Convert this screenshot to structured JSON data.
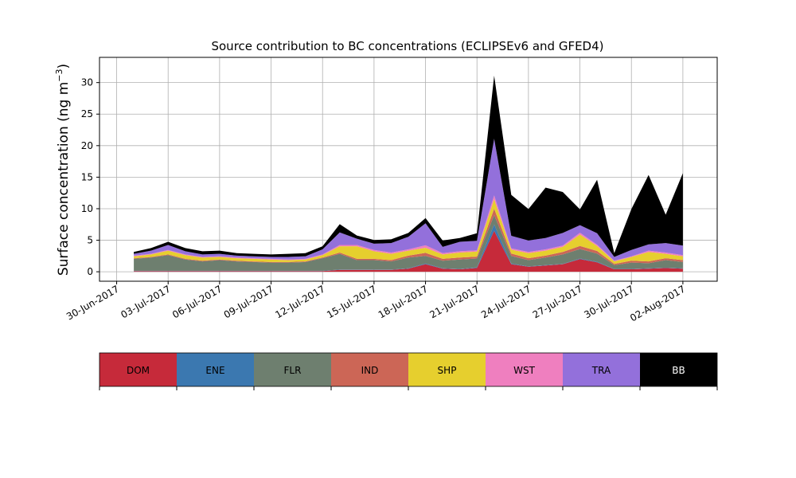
{
  "chart_data": {
    "type": "area",
    "stacked": true,
    "title": "Source contribution to BC concentrations (ECLIPSEv6 and GFED4)",
    "ylabel_text": "Surface concentration (ng m",
    "ylabel_sup": "−3",
    "ylabel_close": ")",
    "xlabel": "",
    "ylim": [
      -1.5,
      34
    ],
    "xlim": [
      "2017-06-29",
      "2017-08-04"
    ],
    "grid": true,
    "x": [
      "2017-07-01",
      "2017-07-02",
      "2017-07-03",
      "2017-07-04",
      "2017-07-05",
      "2017-07-06",
      "2017-07-07",
      "2017-07-08",
      "2017-07-09",
      "2017-07-10",
      "2017-07-11",
      "2017-07-12",
      "2017-07-13",
      "2017-07-14",
      "2017-07-15",
      "2017-07-16",
      "2017-07-17",
      "2017-07-18",
      "2017-07-19",
      "2017-07-20",
      "2017-07-21",
      "2017-07-22",
      "2017-07-23",
      "2017-07-24",
      "2017-07-25",
      "2017-07-26",
      "2017-07-27",
      "2017-07-28",
      "2017-07-29",
      "2017-07-30",
      "2017-07-31",
      "2017-08-01",
      "2017-08-02"
    ],
    "series": [
      {
        "name": "DOM",
        "color": "#c62a3a",
        "values": [
          0.1,
          0.1,
          0.1,
          0.1,
          0.1,
          0.1,
          0.1,
          0.1,
          0.1,
          0.1,
          0.1,
          0.1,
          0.3,
          0.3,
          0.3,
          0.3,
          0.5,
          1.2,
          0.5,
          0.4,
          0.6,
          6.5,
          1.2,
          0.8,
          1.0,
          1.2,
          2.0,
          1.5,
          0.4,
          0.4,
          0.5,
          0.6,
          0.5
        ]
      },
      {
        "name": "ENE",
        "color": "#3b78b0",
        "values": [
          0.05,
          0.05,
          0.05,
          0.05,
          0.05,
          0.05,
          0.05,
          0.05,
          0.05,
          0.05,
          0.05,
          0.05,
          0.05,
          0.05,
          0.05,
          0.05,
          0.05,
          0.1,
          0.05,
          0.05,
          0.1,
          1.0,
          0.1,
          0.05,
          0.05,
          0.05,
          0.1,
          0.1,
          0.05,
          0.05,
          0.05,
          0.05,
          0.05
        ]
      },
      {
        "name": "FLR",
        "color": "#6e7f6f",
        "values": [
          1.9,
          2.1,
          2.5,
          1.8,
          1.5,
          1.7,
          1.5,
          1.4,
          1.3,
          1.3,
          1.4,
          2.0,
          2.5,
          1.5,
          1.5,
          1.3,
          1.7,
          1.2,
          1.2,
          1.5,
          1.4,
          1.5,
          1.2,
          1.0,
          1.2,
          1.5,
          1.5,
          1.3,
          0.6,
          1.0,
          0.8,
          1.2,
          1.0
        ]
      },
      {
        "name": "IND",
        "color": "#cc6656",
        "values": [
          0.1,
          0.1,
          0.1,
          0.1,
          0.1,
          0.1,
          0.1,
          0.1,
          0.1,
          0.1,
          0.1,
          0.1,
          0.2,
          0.2,
          0.2,
          0.2,
          0.3,
          0.5,
          0.3,
          0.3,
          0.3,
          1.0,
          0.4,
          0.3,
          0.3,
          0.4,
          0.5,
          0.4,
          0.2,
          0.3,
          0.3,
          0.3,
          0.3
        ]
      },
      {
        "name": "SHP",
        "color": "#e6cf2e",
        "values": [
          0.3,
          0.4,
          0.6,
          0.6,
          0.5,
          0.4,
          0.4,
          0.4,
          0.4,
          0.3,
          0.3,
          0.4,
          1.0,
          2.0,
          1.2,
          1.0,
          0.8,
          0.8,
          0.7,
          0.8,
          0.8,
          1.5,
          0.6,
          0.8,
          0.8,
          0.8,
          1.8,
          0.8,
          0.4,
          0.6,
          1.5,
          0.7,
          0.6
        ]
      },
      {
        "name": "WST",
        "color": "#ef7fbf",
        "values": [
          0.1,
          0.1,
          0.1,
          0.1,
          0.1,
          0.1,
          0.1,
          0.1,
          0.1,
          0.1,
          0.1,
          0.1,
          0.2,
          0.2,
          0.2,
          0.2,
          0.2,
          0.4,
          0.2,
          0.2,
          0.2,
          0.6,
          0.2,
          0.2,
          0.2,
          0.2,
          0.3,
          0.2,
          0.1,
          0.1,
          0.2,
          0.2,
          0.2
        ]
      },
      {
        "name": "TRA",
        "color": "#9370db",
        "values": [
          0.3,
          0.5,
          0.8,
          0.5,
          0.4,
          0.4,
          0.3,
          0.3,
          0.3,
          0.4,
          0.4,
          0.8,
          2.0,
          1.0,
          1.0,
          1.5,
          2.0,
          3.5,
          1.0,
          1.5,
          1.5,
          9.0,
          2.0,
          1.8,
          1.8,
          2.0,
          1.2,
          1.8,
          0.6,
          1.0,
          1.0,
          1.5,
          1.5
        ]
      },
      {
        "name": "BB",
        "color": "#000000",
        "values": [
          0.3,
          0.4,
          0.5,
          0.5,
          0.5,
          0.5,
          0.4,
          0.4,
          0.4,
          0.5,
          0.5,
          0.5,
          1.3,
          0.5,
          0.6,
          0.6,
          0.6,
          0.8,
          1.0,
          0.6,
          1.2,
          10.0,
          6.5,
          5.0,
          8.0,
          6.5,
          2.5,
          8.5,
          0.6,
          6.5,
          11.0,
          4.5,
          11.5
        ]
      }
    ],
    "x_tick_labels": [
      "30-Jun-2017",
      "03-Jul-2017",
      "06-Jul-2017",
      "09-Jul-2017",
      "12-Jul-2017",
      "15-Jul-2017",
      "18-Jul-2017",
      "21-Jul-2017",
      "24-Jul-2017",
      "27-Jul-2017",
      "30-Jul-2017",
      "02-Aug-2017"
    ],
    "x_tick_dates": [
      "2017-06-30",
      "2017-07-03",
      "2017-07-06",
      "2017-07-09",
      "2017-07-12",
      "2017-07-15",
      "2017-07-18",
      "2017-07-21",
      "2017-07-24",
      "2017-07-27",
      "2017-07-30",
      "2017-08-02"
    ],
    "y_ticks": [
      0,
      5,
      10,
      15,
      20,
      25,
      30
    ],
    "legend": {
      "placement": "bottom",
      "entries": [
        {
          "label": "DOM",
          "color": "#c62a3a",
          "text_color": "#000000"
        },
        {
          "label": "ENE",
          "color": "#3b78b0",
          "text_color": "#000000"
        },
        {
          "label": "FLR",
          "color": "#6e7f6f",
          "text_color": "#000000"
        },
        {
          "label": "IND",
          "color": "#cc6656",
          "text_color": "#000000"
        },
        {
          "label": "SHP",
          "color": "#e6cf2e",
          "text_color": "#000000"
        },
        {
          "label": "WST",
          "color": "#ef7fbf",
          "text_color": "#000000"
        },
        {
          "label": "TRA",
          "color": "#9370db",
          "text_color": "#000000"
        },
        {
          "label": "BB",
          "color": "#000000",
          "text_color": "#ffffff"
        }
      ]
    }
  }
}
